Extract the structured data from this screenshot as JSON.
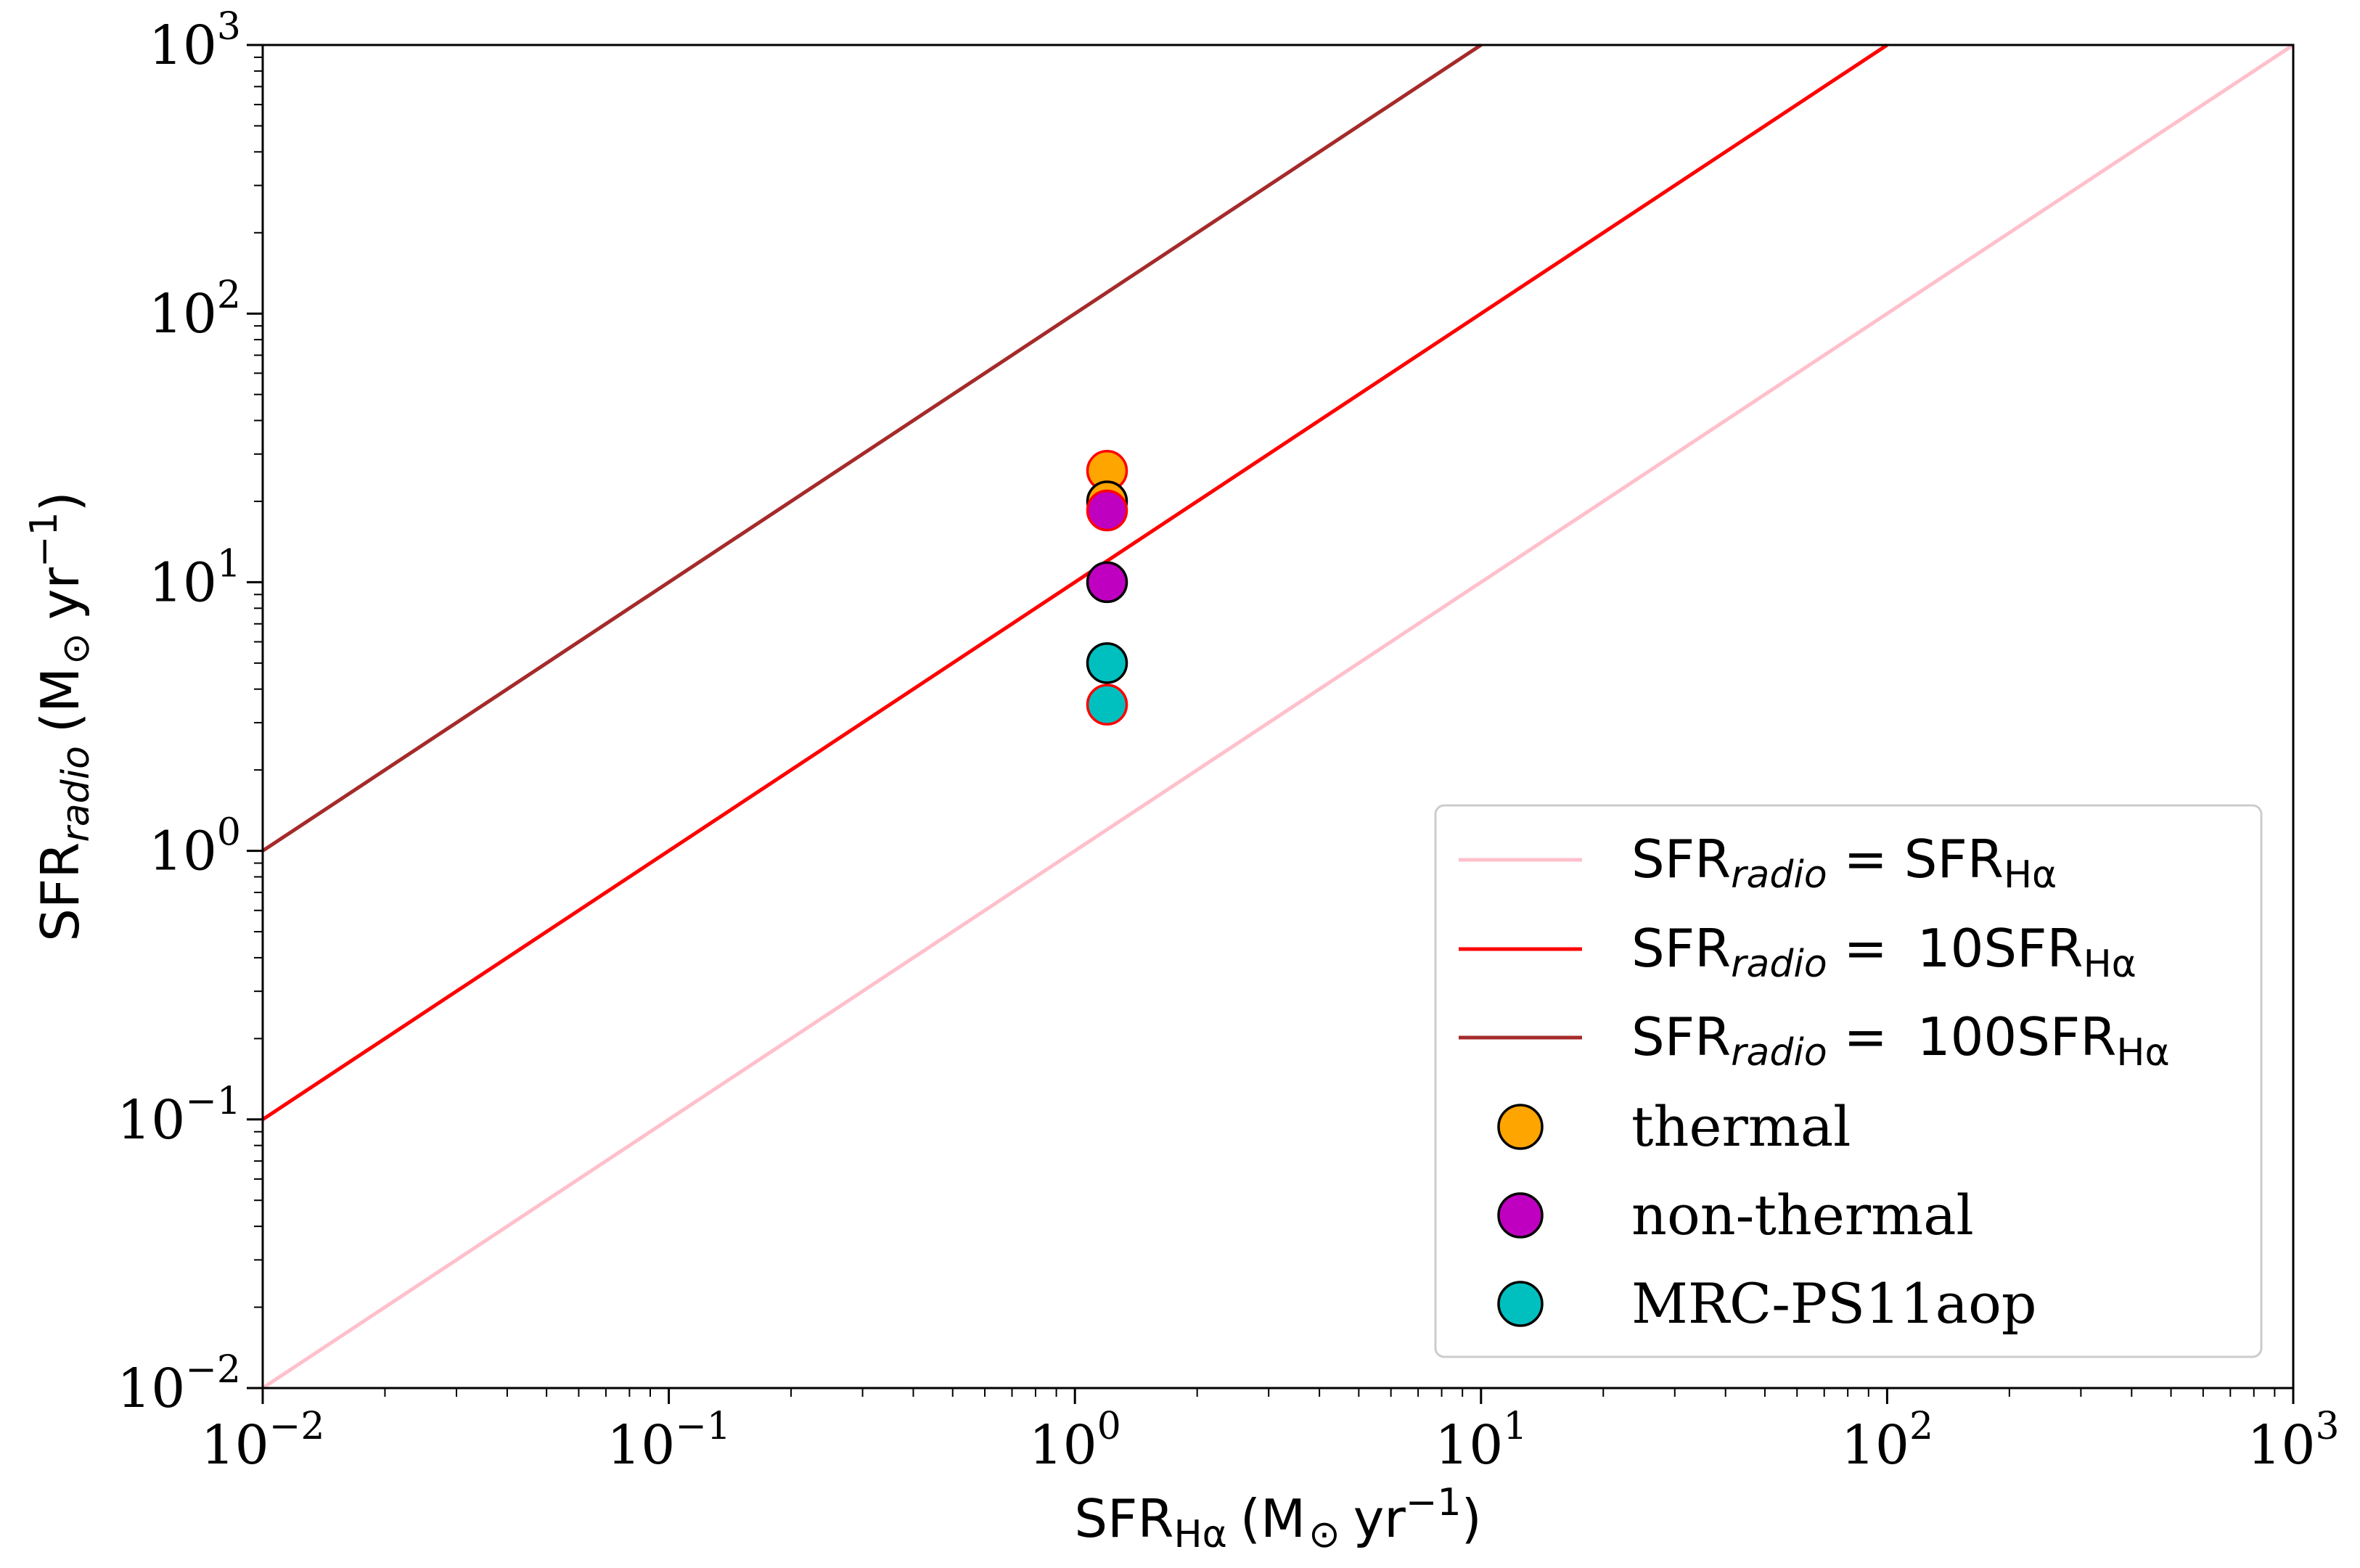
{
  "chart_data": {
    "type": "scatter",
    "xscale": "log",
    "yscale": "log",
    "xlim": [
      0.01,
      1000
    ],
    "ylim": [
      0.01,
      1000
    ],
    "grid": false,
    "legend_position": "lower-right",
    "xlabel": {
      "main": "SFR",
      "sub": "Hα",
      "unit": "(M",
      "odot": "⊙",
      "unit_tail": "yr",
      "unit_exp": "−1",
      "close": ")"
    },
    "ylabel": {
      "main": "SFR",
      "sub": "radio",
      "unit": "(M",
      "odot": "⊙",
      "unit_tail": "yr",
      "unit_exp": "−1",
      "close": ")"
    },
    "xticks": [
      {
        "value": 0.01,
        "base": "10",
        "exp": "−2"
      },
      {
        "value": 0.1,
        "base": "10",
        "exp": "−1"
      },
      {
        "value": 1,
        "base": "10",
        "exp": "0"
      },
      {
        "value": 10,
        "base": "10",
        "exp": "1"
      },
      {
        "value": 100,
        "base": "10",
        "exp": "2"
      },
      {
        "value": 1000,
        "base": "10",
        "exp": "3"
      }
    ],
    "yticks": [
      {
        "value": 0.01,
        "base": "10",
        "exp": "−2"
      },
      {
        "value": 0.1,
        "base": "10",
        "exp": "−1"
      },
      {
        "value": 1,
        "base": "10",
        "exp": "0"
      },
      {
        "value": 10,
        "base": "10",
        "exp": "1"
      },
      {
        "value": 100,
        "base": "10",
        "exp": "2"
      },
      {
        "value": 1000,
        "base": "10",
        "exp": "3"
      }
    ],
    "lines": [
      {
        "factor": 1,
        "color": "#ffc0cb",
        "legend": {
          "lhs": "SFR",
          "lhs_sub": "radio",
          "eq": " = ",
          "coef": "",
          "rhs": "SFR",
          "rhs_sub": "Hα"
        }
      },
      {
        "factor": 10,
        "color": "#ff0000",
        "legend": {
          "lhs": "SFR",
          "lhs_sub": "radio",
          "eq": " = ",
          "coef": "10",
          "rhs": "SFR",
          "rhs_sub": "Hα"
        }
      },
      {
        "factor": 100,
        "color": "#a52a2a",
        "legend": {
          "lhs": "SFR",
          "lhs_sub": "radio",
          "eq": " = ",
          "coef": "100",
          "rhs": "SFR",
          "rhs_sub": "Hα"
        }
      }
    ],
    "series": [
      {
        "name": "thermal",
        "color": "#ffa500",
        "points": [
          {
            "x": 1.2,
            "y": 26,
            "edge": "#ff0000"
          },
          {
            "x": 1.2,
            "y": 20,
            "edge": "#000000"
          }
        ]
      },
      {
        "name": "non-thermal",
        "color": "#c000c0",
        "points": [
          {
            "x": 1.2,
            "y": 18.5,
            "edge": "#ff0000"
          },
          {
            "x": 1.2,
            "y": 10,
            "edge": "#000000"
          }
        ]
      },
      {
        "name": "MRC-PS11aop",
        "color": "#00bfbf",
        "points": [
          {
            "x": 1.2,
            "y": 5.0,
            "edge": "#000000"
          },
          {
            "x": 1.2,
            "y": 3.5,
            "edge": "#ff0000"
          }
        ]
      }
    ]
  }
}
